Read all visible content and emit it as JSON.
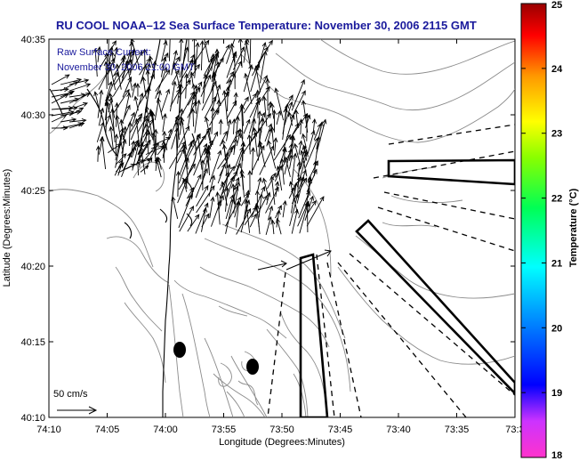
{
  "title": "RU COOL  NOAA–12  Sea Surface Temperature:  November 30, 2006 2115 GMT",
  "legend": {
    "line1": "Raw Surface Current:",
    "line2": "November 30, 2006 21:00 GMT"
  },
  "scale_label": "50 cm/s",
  "map": {
    "xlabel": "Longitude (Degrees:Minutes)",
    "ylabel": "Latitude (Degrees:Minutes)",
    "x_ticks": [
      "74:10",
      "74:05",
      "74:00",
      "73:55",
      "73:50",
      "73:45",
      "73:40",
      "73:35",
      "73:3"
    ],
    "y_ticks": [
      "40:35",
      "40:30",
      "40:25",
      "40:20",
      "40:15",
      "40:10"
    ]
  },
  "colorbar": {
    "label": "Temperature (°C)",
    "min": 18,
    "max": 25,
    "ticks": [
      "25",
      "24",
      "23",
      "22",
      "21",
      "20",
      "19",
      "18"
    ],
    "colors": [
      "#ff33cc",
      "#8800ff",
      "#0000ff",
      "#0077ff",
      "#00ffff",
      "#00ff66",
      "#66ff00",
      "#ffff00",
      "#ff9900",
      "#ff0000",
      "#a00000"
    ]
  }
}
